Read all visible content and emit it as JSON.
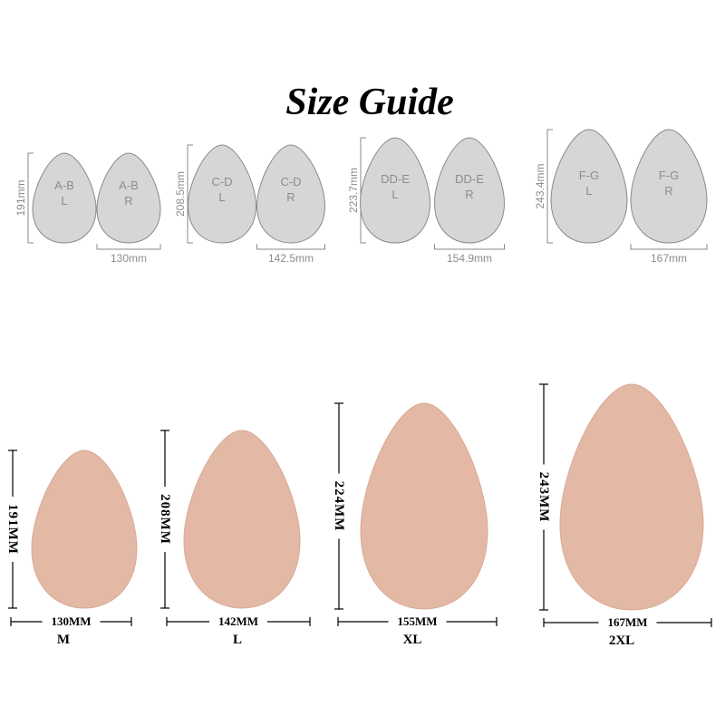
{
  "title": "Size Guide",
  "colors": {
    "gray_fill": "#d6d6d6",
    "gray_stroke": "#8a8a8a",
    "gray_text": "#8c8c8c",
    "skin_fill": "#e3b9a6",
    "skin_edge": "#d9a996",
    "dim_line": "#000000"
  },
  "gray_guide": [
    {
      "left_label": [
        "A-B",
        "L"
      ],
      "right_label": [
        "A-B",
        "R"
      ],
      "height": "191mm",
      "width": "130mm"
    },
    {
      "left_label": [
        "C-D",
        "L"
      ],
      "right_label": [
        "C-D",
        "R"
      ],
      "height": "208.5mm",
      "width": "142.5mm"
    },
    {
      "left_label": [
        "DD-E",
        "L"
      ],
      "right_label": [
        "DD-E",
        "R"
      ],
      "height": "223.7mm",
      "width": "154.9mm"
    },
    {
      "left_label": [
        "F-G",
        "L"
      ],
      "right_label": [
        "F-G",
        "R"
      ],
      "height": "243.4mm",
      "width": "167mm"
    }
  ],
  "pads": [
    {
      "size": "M",
      "height": "191MM",
      "width": "130MM"
    },
    {
      "size": "L",
      "height": "208MM",
      "width": "142MM"
    },
    {
      "size": "XL",
      "height": "224MM",
      "width": "155MM"
    },
    {
      "size": "2XL",
      "height": "243MM",
      "width": "167MM"
    }
  ]
}
